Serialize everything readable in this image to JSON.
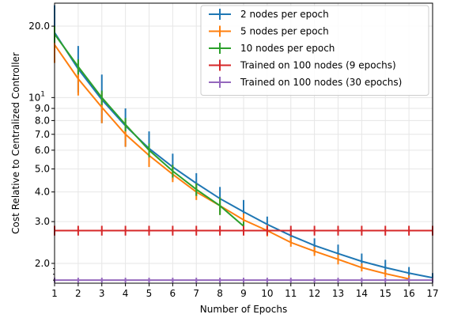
{
  "chart_data": {
    "type": "line",
    "title": "",
    "xlabel": "Number of Epochs",
    "ylabel": "Cost Relative to Centralized Controller",
    "x_scale": "linear",
    "y_scale": "log",
    "xlim": [
      1,
      17
    ],
    "ylim": [
      1.65,
      25
    ],
    "grid": true,
    "legend_position": "top-right",
    "x_ticks": [
      1,
      2,
      3,
      4,
      5,
      6,
      7,
      8,
      9,
      10,
      11,
      12,
      13,
      14,
      15,
      16,
      17
    ],
    "y_ticks": [
      {
        "value": 2,
        "label": "2.0"
      },
      {
        "value": 3,
        "label": "3.0"
      },
      {
        "value": 4,
        "label": "4.0"
      },
      {
        "value": 5,
        "label": "5.0"
      },
      {
        "value": 6,
        "label": "6.0"
      },
      {
        "value": 7,
        "label": "7.0"
      },
      {
        "value": 8,
        "label": "8.0"
      },
      {
        "value": 9,
        "label": "9.0"
      },
      {
        "value": 10,
        "label": "10",
        "exp": "1"
      },
      {
        "value": 20,
        "label": "20.0"
      }
    ],
    "series": [
      {
        "name": "2 nodes per epoch",
        "color": "#1f77b4",
        "x": [
          1,
          2,
          3,
          4,
          5,
          6,
          7,
          8,
          9,
          10,
          11,
          12,
          13,
          14,
          15,
          16,
          17
        ],
        "y": [
          18.8,
          13.2,
          9.8,
          7.6,
          6.1,
          5.1,
          4.35,
          3.75,
          3.3,
          2.92,
          2.62,
          2.38,
          2.2,
          2.04,
          1.92,
          1.82,
          1.74
        ],
        "err_low": [
          14.0,
          10.5,
          7.8,
          6.2,
          5.1,
          4.5,
          3.85,
          3.3,
          2.95,
          2.7,
          2.45,
          2.2,
          2.05,
          1.9,
          1.8,
          1.72,
          1.66
        ],
        "err_high": [
          24.5,
          16.5,
          12.5,
          9.0,
          7.2,
          5.8,
          4.8,
          4.2,
          3.7,
          3.15,
          2.8,
          2.55,
          2.4,
          2.2,
          2.07,
          1.93,
          1.82
        ]
      },
      {
        "name": "5 nodes per epoch",
        "color": "#ff7f0e",
        "x": [
          1,
          2,
          3,
          4,
          5,
          6,
          7,
          8,
          9,
          10,
          11,
          12,
          13,
          14,
          15,
          16
        ],
        "y": [
          16.7,
          12.0,
          9.1,
          7.0,
          5.7,
          4.75,
          4.0,
          3.5,
          3.05,
          2.75,
          2.45,
          2.25,
          2.08,
          1.92,
          1.81,
          1.72
        ],
        "err_low": [
          14.0,
          10.2,
          7.8,
          6.2,
          5.1,
          4.4,
          3.7,
          3.2,
          2.88,
          2.6,
          2.35,
          2.15,
          1.98,
          1.85,
          1.75,
          1.66
        ],
        "err_high": [
          19.5,
          14.0,
          10.5,
          8.0,
          6.4,
          5.2,
          4.35,
          3.8,
          3.25,
          2.9,
          2.58,
          2.35,
          2.18,
          2.0,
          1.88,
          1.78
        ]
      },
      {
        "name": "10 nodes per epoch",
        "color": "#2ca02c",
        "x": [
          1,
          2,
          3,
          4,
          5,
          6,
          7,
          8,
          9
        ],
        "y": [
          18.5,
          13.5,
          10.0,
          7.7,
          6.0,
          4.9,
          4.1,
          3.5,
          2.87
        ],
        "err_low": [
          17.0,
          12.5,
          9.3,
          7.2,
          5.6,
          4.6,
          3.85,
          3.2,
          2.75
        ],
        "err_high": [
          20.0,
          14.5,
          10.7,
          8.2,
          6.4,
          5.2,
          4.35,
          3.8,
          3.0
        ]
      },
      {
        "name": "Trained on 100 nodes (9 epochs)",
        "color": "#d62728",
        "x": [
          1,
          2,
          3,
          4,
          5,
          6,
          7,
          8,
          9,
          10,
          11,
          12,
          13,
          14,
          15,
          16,
          17
        ],
        "y": [
          2.75,
          2.75,
          2.75,
          2.75,
          2.75,
          2.75,
          2.75,
          2.75,
          2.75,
          2.75,
          2.75,
          2.75,
          2.75,
          2.75,
          2.75,
          2.75,
          2.75
        ],
        "err_low": [
          2.62,
          2.62,
          2.62,
          2.62,
          2.62,
          2.62,
          2.62,
          2.62,
          2.62,
          2.62,
          2.62,
          2.62,
          2.62,
          2.62,
          2.62,
          2.62,
          2.62
        ],
        "err_high": [
          2.88,
          2.88,
          2.88,
          2.88,
          2.88,
          2.88,
          2.88,
          2.88,
          2.88,
          2.88,
          2.88,
          2.88,
          2.88,
          2.88,
          2.88,
          2.88,
          2.88
        ]
      },
      {
        "name": "Trained on 100 nodes (30 epochs)",
        "color": "#9467bd",
        "x": [
          1,
          2,
          3,
          4,
          5,
          6,
          7,
          8,
          9,
          10,
          11,
          12,
          13,
          14,
          15,
          16,
          17
        ],
        "y": [
          1.7,
          1.7,
          1.7,
          1.7,
          1.7,
          1.7,
          1.7,
          1.7,
          1.7,
          1.7,
          1.7,
          1.7,
          1.7,
          1.7,
          1.7,
          1.7,
          1.7
        ],
        "err_low": [
          1.66,
          1.66,
          1.66,
          1.66,
          1.66,
          1.66,
          1.66,
          1.66,
          1.66,
          1.66,
          1.66,
          1.66,
          1.66,
          1.66,
          1.66,
          1.66,
          1.66
        ],
        "err_high": [
          1.74,
          1.74,
          1.74,
          1.74,
          1.74,
          1.74,
          1.74,
          1.74,
          1.74,
          1.74,
          1.74,
          1.74,
          1.74,
          1.74,
          1.74,
          1.74,
          1.74
        ]
      }
    ]
  }
}
